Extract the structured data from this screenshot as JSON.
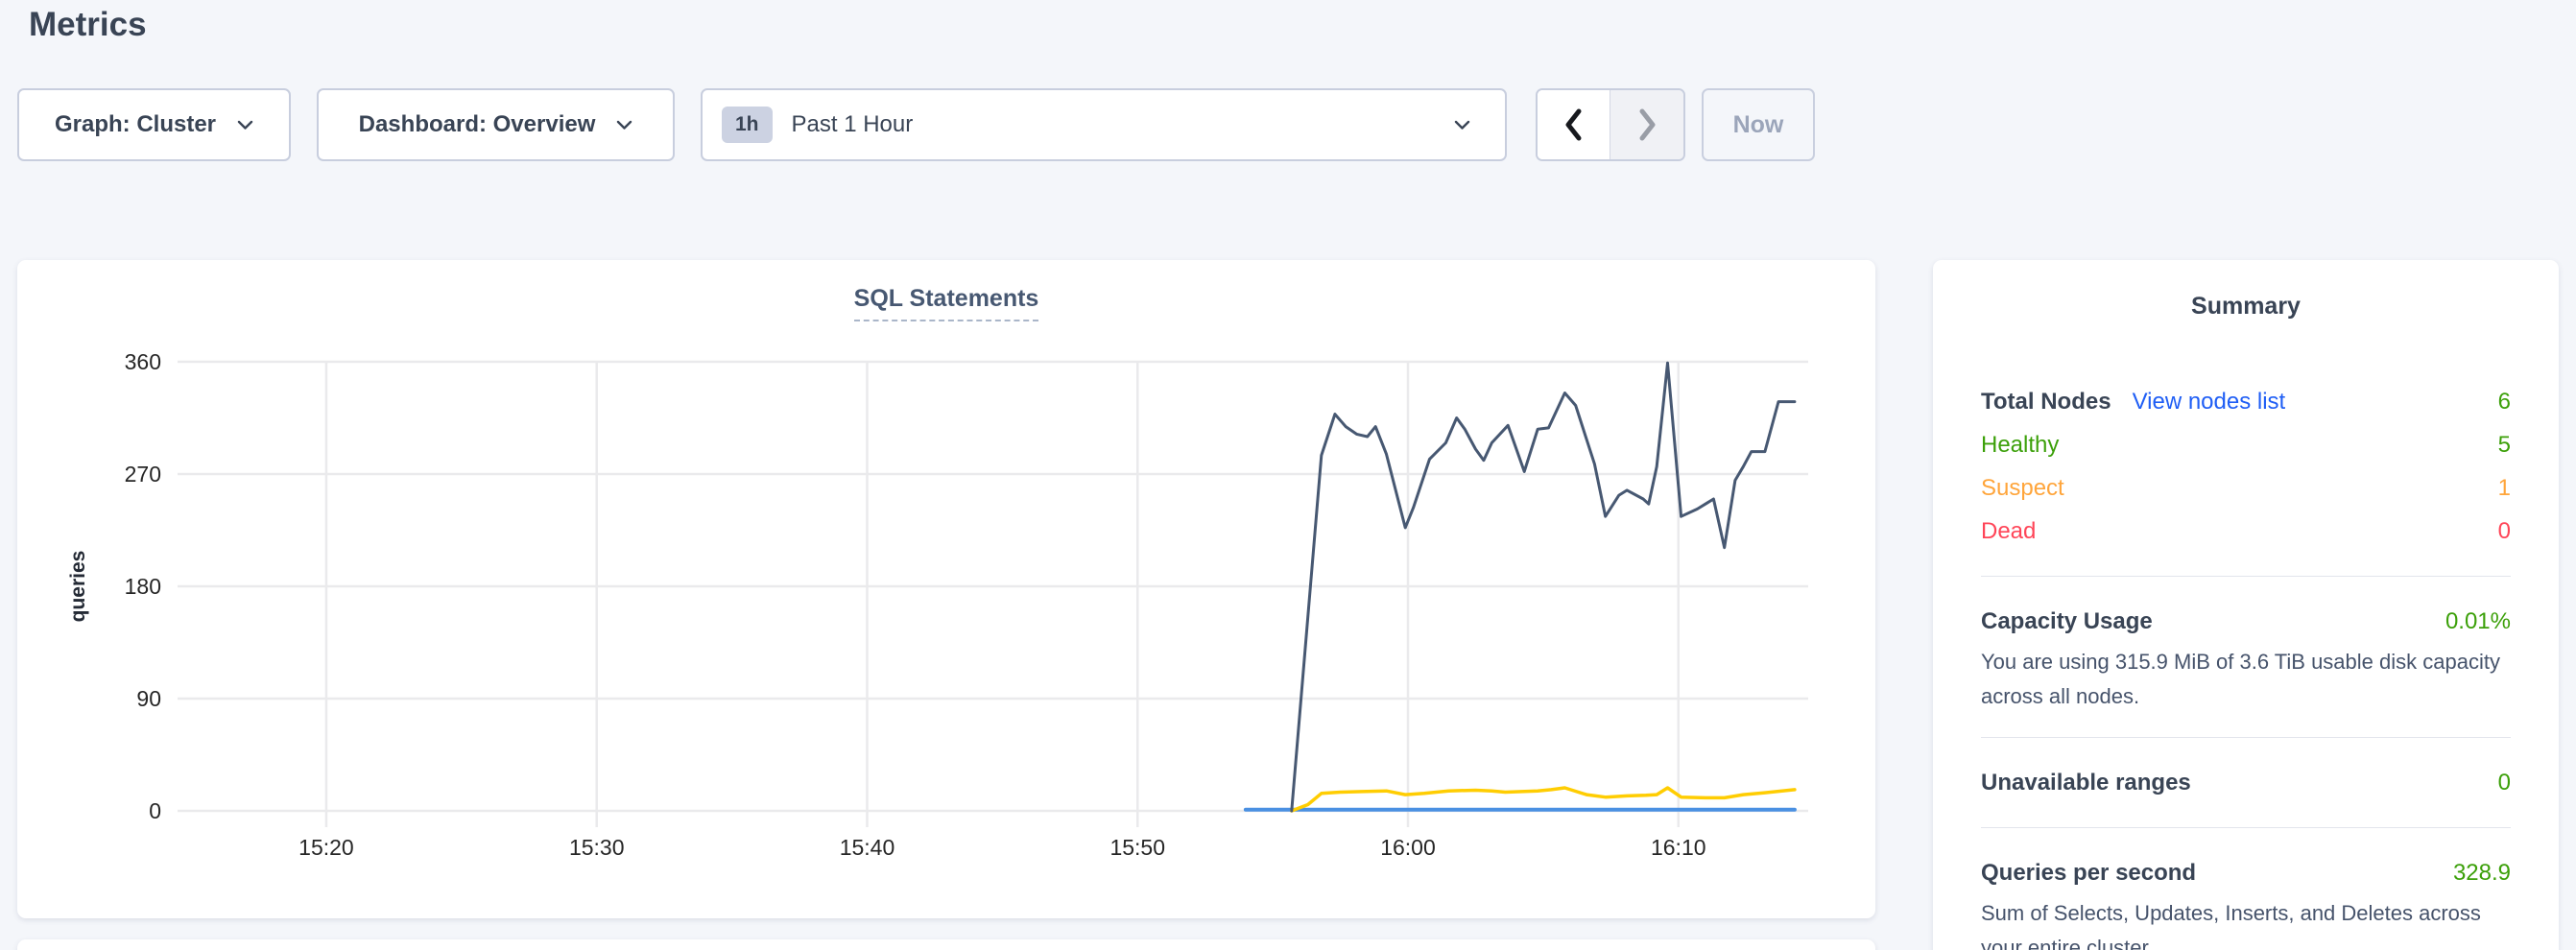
{
  "header": {
    "title": "Metrics"
  },
  "controls": {
    "graph_dropdown": {
      "label": "Graph: Cluster"
    },
    "dashboard_dropdown": {
      "label": "Dashboard: Overview"
    },
    "time_selector": {
      "badge": "1h",
      "label": "Past 1 Hour"
    },
    "now_button": {
      "label": "Now"
    }
  },
  "colors": {
    "green": "#3ca00a",
    "orange": "#ffa53b",
    "red": "#ff4558",
    "link-blue": "#1f5ef5",
    "heading": "#394455",
    "gridline": "#eaeaec",
    "tick-text": "#262626"
  },
  "chart_data": {
    "type": "line",
    "title": "SQL Statements",
    "ylabel": "queries",
    "legend": "none visible",
    "x_axis": {
      "unit": "time of day, minutes since midnight",
      "range": [
        914.5,
        974.8
      ],
      "ticks": [
        920,
        930,
        940,
        950,
        960,
        970
      ],
      "tick_labels": [
        "15:20",
        "15:30",
        "15:40",
        "15:50",
        "16:00",
        "16:10"
      ]
    },
    "y_axis": {
      "range": [
        0,
        360
      ],
      "ticks": [
        0,
        90,
        180,
        270,
        360
      ]
    },
    "grid": "on",
    "series": [
      {
        "name": "series-light-blue-flat",
        "color": "#4a90e2",
        "width": 4,
        "points": [
          [
            954.0,
            1
          ],
          [
            974.3,
            1
          ]
        ]
      },
      {
        "name": "series-yellow",
        "color": "#ffcd02",
        "width": 3.5,
        "points": [
          [
            955.7,
            0
          ],
          [
            956.3,
            5
          ],
          [
            956.8,
            14
          ],
          [
            957.5,
            15
          ],
          [
            958.3,
            15.5
          ],
          [
            959.2,
            16
          ],
          [
            959.9,
            13
          ],
          [
            960.6,
            14
          ],
          [
            961.5,
            16
          ],
          [
            962.5,
            16.5
          ],
          [
            963.1,
            16
          ],
          [
            963.6,
            15
          ],
          [
            964.2,
            15.5
          ],
          [
            964.8,
            16
          ],
          [
            965.3,
            17
          ],
          [
            965.8,
            18.5
          ],
          [
            966.6,
            13
          ],
          [
            967.3,
            11
          ],
          [
            968.1,
            12
          ],
          [
            968.8,
            12.5
          ],
          [
            969.2,
            13
          ],
          [
            969.6,
            18.5
          ],
          [
            970.1,
            11
          ],
          [
            971.0,
            10.5
          ],
          [
            971.7,
            10.5
          ],
          [
            972.4,
            13
          ],
          [
            973.2,
            14.5
          ],
          [
            974.3,
            17
          ]
        ]
      },
      {
        "name": "series-dark-slate",
        "color": "#475872",
        "width": 3,
        "points": [
          [
            955.7,
            0
          ],
          [
            956.8,
            285
          ],
          [
            957.3,
            318
          ],
          [
            957.7,
            308
          ],
          [
            958.1,
            302
          ],
          [
            958.5,
            300
          ],
          [
            958.8,
            308
          ],
          [
            959.2,
            286
          ],
          [
            959.9,
            227
          ],
          [
            960.2,
            243
          ],
          [
            960.8,
            282
          ],
          [
            961.4,
            295
          ],
          [
            961.8,
            315
          ],
          [
            962.1,
            306
          ],
          [
            962.5,
            290
          ],
          [
            962.8,
            281
          ],
          [
            963.1,
            295
          ],
          [
            963.7,
            309
          ],
          [
            964.3,
            272
          ],
          [
            964.8,
            306
          ],
          [
            965.2,
            307
          ],
          [
            965.8,
            335
          ],
          [
            966.2,
            325
          ],
          [
            966.9,
            278
          ],
          [
            967.3,
            236
          ],
          [
            967.8,
            253
          ],
          [
            968.1,
            257
          ],
          [
            968.7,
            250
          ],
          [
            968.9,
            246
          ],
          [
            969.2,
            276
          ],
          [
            969.6,
            359
          ],
          [
            970.1,
            236
          ],
          [
            970.7,
            242
          ],
          [
            971.3,
            250
          ],
          [
            971.7,
            211
          ],
          [
            972.1,
            265
          ],
          [
            972.4,
            276
          ],
          [
            972.7,
            288
          ],
          [
            973.2,
            288
          ],
          [
            973.7,
            328
          ],
          [
            974.3,
            328
          ]
        ]
      }
    ]
  },
  "summary": {
    "title": "Summary",
    "total_nodes": {
      "label": "Total Nodes",
      "link": "View nodes list",
      "value": "6"
    },
    "healthy": {
      "label": "Healthy",
      "value": "5"
    },
    "suspect": {
      "label": "Suspect",
      "value": "1"
    },
    "dead": {
      "label": "Dead",
      "value": "0"
    },
    "capacity": {
      "label": "Capacity Usage",
      "value": "0.01%",
      "description": "You are using 315.9 MiB of 3.6 TiB usable disk capacity across all nodes."
    },
    "unavailable_ranges": {
      "label": "Unavailable ranges",
      "value": "0"
    },
    "qps": {
      "label": "Queries per second",
      "value": "328.9",
      "description": "Sum of Selects, Updates, Inserts, and Deletes across your entire cluster."
    }
  }
}
